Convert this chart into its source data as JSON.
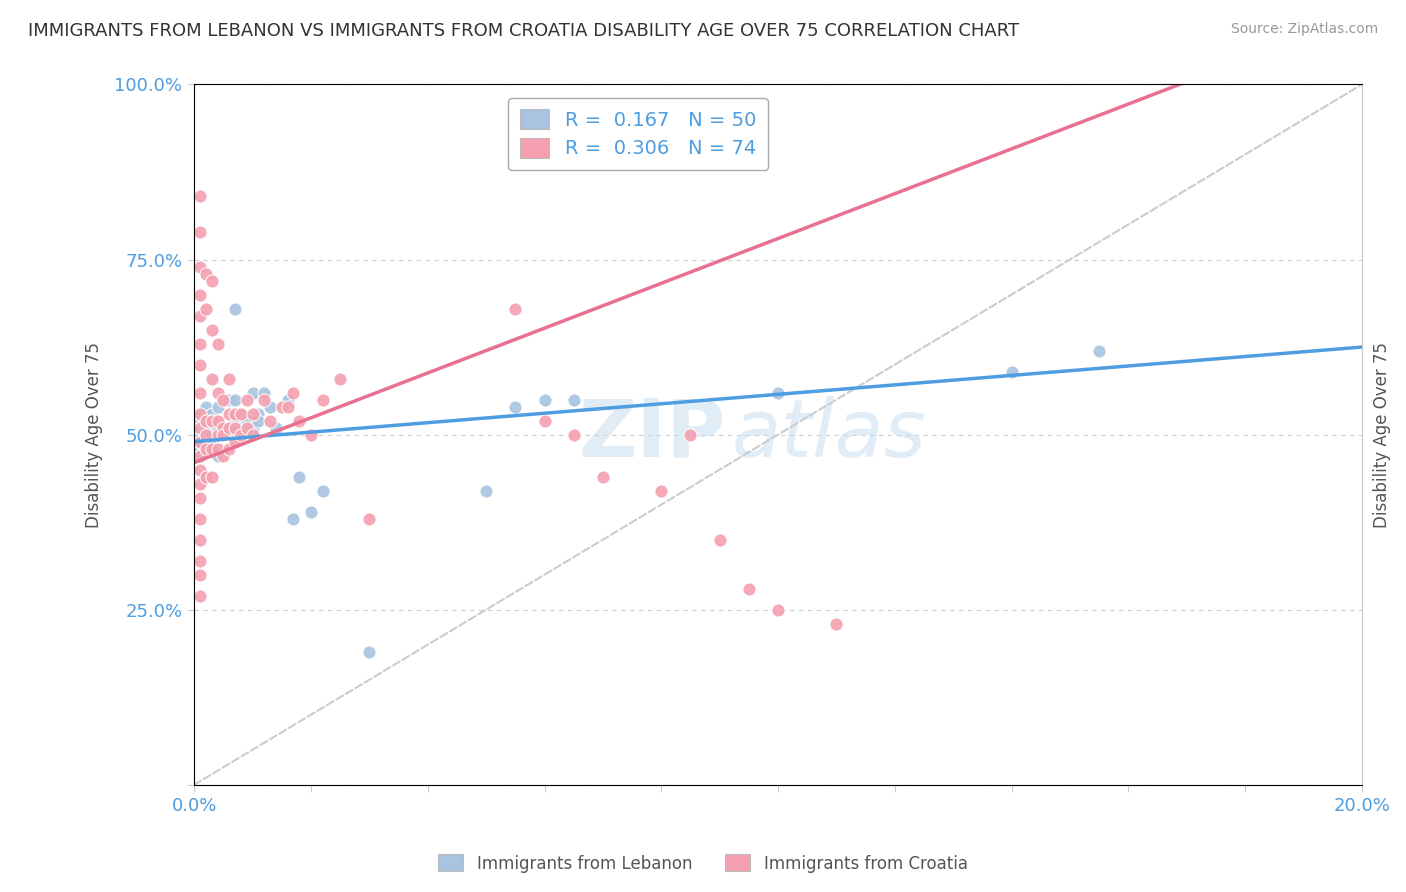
{
  "title": "IMMIGRANTS FROM LEBANON VS IMMIGRANTS FROM CROATIA DISABILITY AGE OVER 75 CORRELATION CHART",
  "source": "Source: ZipAtlas.com",
  "ylabel": "Disability Age Over 75",
  "xlim": [
    0.0,
    0.2
  ],
  "ylim": [
    0.0,
    1.0
  ],
  "xticks": [
    0.0,
    0.02,
    0.04,
    0.06,
    0.08,
    0.1,
    0.12,
    0.14,
    0.16,
    0.18,
    0.2
  ],
  "yticks": [
    0.0,
    0.25,
    0.5,
    0.75,
    1.0
  ],
  "xticklabels": [
    "0.0%",
    "",
    "",
    "",
    "",
    "",
    "",
    "",
    "",
    "",
    "20.0%"
  ],
  "yticklabels": [
    "",
    "25.0%",
    "50.0%",
    "75.0%",
    "100.0%"
  ],
  "lebanon_color": "#a8c4e0",
  "croatia_color": "#f4a0b0",
  "legend_label_lebanon": "R =  0.167   N = 50",
  "legend_label_croatia": "R =  0.306   N = 74",
  "watermark_top": "ZIP",
  "watermark_bottom": "atlas",
  "background_color": "#ffffff",
  "grid_color": "#cccccc",
  "title_fontsize": 13,
  "tick_color": "#4d9de0",
  "lebanon_line_color": "#4d9de0",
  "croatia_line_color": "#e87090",
  "ref_line_color": "#cccccc",
  "lebanon_scatter": [
    [
      0.001,
      0.5
    ],
    [
      0.001,
      0.52
    ],
    [
      0.001,
      0.48
    ],
    [
      0.001,
      0.51
    ],
    [
      0.001,
      0.49
    ],
    [
      0.001,
      0.53
    ],
    [
      0.001,
      0.47
    ],
    [
      0.002,
      0.52
    ],
    [
      0.002,
      0.5
    ],
    [
      0.002,
      0.54
    ],
    [
      0.002,
      0.48
    ],
    [
      0.002,
      0.51
    ],
    [
      0.003,
      0.5
    ],
    [
      0.003,
      0.53
    ],
    [
      0.003,
      0.49
    ],
    [
      0.003,
      0.52
    ],
    [
      0.004,
      0.54
    ],
    [
      0.004,
      0.5
    ],
    [
      0.004,
      0.51
    ],
    [
      0.004,
      0.47
    ],
    [
      0.005,
      0.51
    ],
    [
      0.005,
      0.5
    ],
    [
      0.006,
      0.55
    ],
    [
      0.006,
      0.51
    ],
    [
      0.007,
      0.68
    ],
    [
      0.007,
      0.55
    ],
    [
      0.007,
      0.52
    ],
    [
      0.008,
      0.53
    ],
    [
      0.008,
      0.51
    ],
    [
      0.009,
      0.52
    ],
    [
      0.01,
      0.56
    ],
    [
      0.01,
      0.51
    ],
    [
      0.011,
      0.53
    ],
    [
      0.011,
      0.52
    ],
    [
      0.012,
      0.56
    ],
    [
      0.013,
      0.54
    ],
    [
      0.014,
      0.51
    ],
    [
      0.016,
      0.55
    ],
    [
      0.017,
      0.38
    ],
    [
      0.018,
      0.44
    ],
    [
      0.02,
      0.39
    ],
    [
      0.022,
      0.42
    ],
    [
      0.03,
      0.19
    ],
    [
      0.05,
      0.42
    ],
    [
      0.055,
      0.54
    ],
    [
      0.06,
      0.55
    ],
    [
      0.065,
      0.55
    ],
    [
      0.1,
      0.56
    ],
    [
      0.14,
      0.59
    ],
    [
      0.155,
      0.62
    ]
  ],
  "croatia_scatter": [
    [
      0.001,
      0.84
    ],
    [
      0.001,
      0.79
    ],
    [
      0.001,
      0.74
    ],
    [
      0.001,
      0.7
    ],
    [
      0.001,
      0.67
    ],
    [
      0.001,
      0.63
    ],
    [
      0.001,
      0.6
    ],
    [
      0.001,
      0.56
    ],
    [
      0.001,
      0.53
    ],
    [
      0.001,
      0.51
    ],
    [
      0.001,
      0.49
    ],
    [
      0.001,
      0.47
    ],
    [
      0.001,
      0.45
    ],
    [
      0.001,
      0.43
    ],
    [
      0.001,
      0.41
    ],
    [
      0.001,
      0.38
    ],
    [
      0.001,
      0.35
    ],
    [
      0.001,
      0.32
    ],
    [
      0.001,
      0.3
    ],
    [
      0.001,
      0.27
    ],
    [
      0.002,
      0.73
    ],
    [
      0.002,
      0.68
    ],
    [
      0.002,
      0.52
    ],
    [
      0.002,
      0.5
    ],
    [
      0.002,
      0.48
    ],
    [
      0.002,
      0.44
    ],
    [
      0.003,
      0.72
    ],
    [
      0.003,
      0.65
    ],
    [
      0.003,
      0.58
    ],
    [
      0.003,
      0.52
    ],
    [
      0.003,
      0.48
    ],
    [
      0.003,
      0.44
    ],
    [
      0.004,
      0.63
    ],
    [
      0.004,
      0.56
    ],
    [
      0.004,
      0.52
    ],
    [
      0.004,
      0.5
    ],
    [
      0.004,
      0.48
    ],
    [
      0.005,
      0.55
    ],
    [
      0.005,
      0.51
    ],
    [
      0.005,
      0.5
    ],
    [
      0.005,
      0.47
    ],
    [
      0.006,
      0.58
    ],
    [
      0.006,
      0.53
    ],
    [
      0.006,
      0.51
    ],
    [
      0.006,
      0.48
    ],
    [
      0.007,
      0.53
    ],
    [
      0.007,
      0.51
    ],
    [
      0.007,
      0.49
    ],
    [
      0.008,
      0.53
    ],
    [
      0.008,
      0.5
    ],
    [
      0.009,
      0.55
    ],
    [
      0.009,
      0.51
    ],
    [
      0.01,
      0.53
    ],
    [
      0.01,
      0.5
    ],
    [
      0.012,
      0.55
    ],
    [
      0.013,
      0.52
    ],
    [
      0.015,
      0.54
    ],
    [
      0.016,
      0.54
    ],
    [
      0.017,
      0.56
    ],
    [
      0.018,
      0.52
    ],
    [
      0.02,
      0.5
    ],
    [
      0.022,
      0.55
    ],
    [
      0.025,
      0.58
    ],
    [
      0.03,
      0.38
    ],
    [
      0.055,
      0.68
    ],
    [
      0.06,
      0.52
    ],
    [
      0.065,
      0.5
    ],
    [
      0.07,
      0.44
    ],
    [
      0.08,
      0.42
    ],
    [
      0.085,
      0.5
    ],
    [
      0.09,
      0.35
    ],
    [
      0.095,
      0.28
    ],
    [
      0.1,
      0.25
    ],
    [
      0.11,
      0.23
    ]
  ]
}
